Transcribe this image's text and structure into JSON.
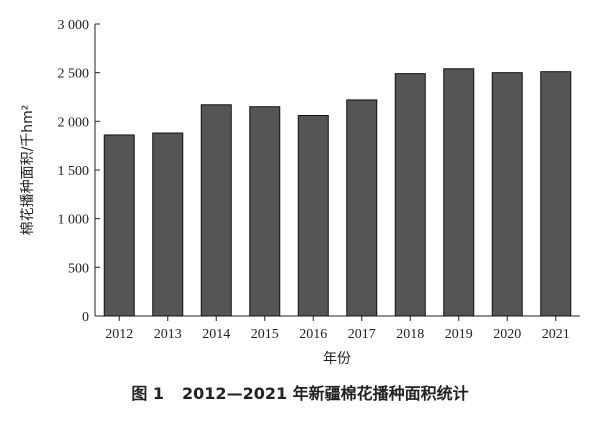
{
  "caption": {
    "number": "图 1",
    "text": "2012—2021 年新疆棉花播种面积统计"
  },
  "chart_data": {
    "type": "bar",
    "categories": [
      "2012",
      "2013",
      "2014",
      "2015",
      "2016",
      "2017",
      "2018",
      "2019",
      "2020",
      "2021"
    ],
    "values": [
      1860,
      1880,
      2170,
      2150,
      2060,
      2220,
      2490,
      2540,
      2500,
      2510
    ],
    "xlabel": "年份",
    "ylabel": "棉花播种面积/千hm²",
    "ylim": [
      0,
      3000
    ],
    "yticks": [
      0,
      500,
      1000,
      1500,
      2000,
      2500,
      3000
    ],
    "ytick_labels": [
      "0",
      "500",
      "1 000",
      "1 500",
      "2 000",
      "2 500",
      "3 000"
    ],
    "grid": false,
    "bar_color": "#555555",
    "bar_edge_color": "#111111"
  }
}
